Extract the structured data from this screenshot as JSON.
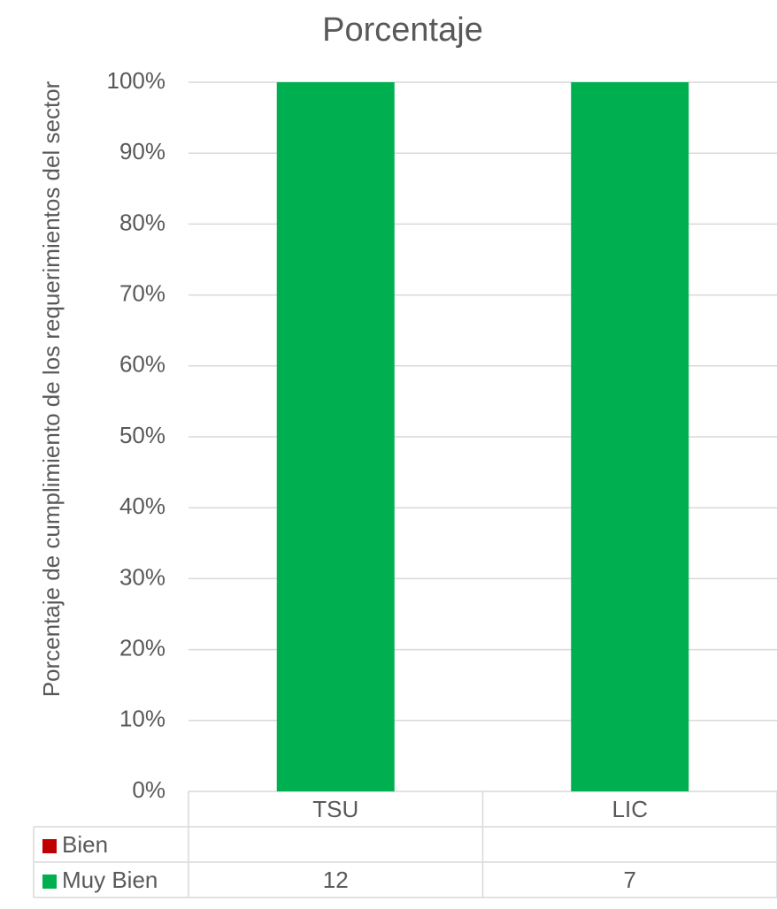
{
  "chart_data": {
    "type": "bar",
    "stacking": "percent",
    "data_table": true,
    "grid": true,
    "title": "Porcentaje",
    "y_label": "Porcentaje de cumplimiento de los requerimientos del sector",
    "categories": [
      "TSU",
      "LIC"
    ],
    "series": [
      {
        "name": "Bien",
        "color": "#c00000",
        "values": [
          null,
          null
        ]
      },
      {
        "name": "Muy Bien",
        "color": "#00b050",
        "values": [
          12,
          7
        ]
      }
    ],
    "ylim": [
      0,
      100
    ],
    "yticks": [
      {
        "value": 0,
        "label": "0%"
      },
      {
        "value": 10,
        "label": "10%"
      },
      {
        "value": 20,
        "label": "20%"
      },
      {
        "value": 30,
        "label": "30%"
      },
      {
        "value": 40,
        "label": "40%"
      },
      {
        "value": 50,
        "label": "50%"
      },
      {
        "value": 60,
        "label": "60%"
      },
      {
        "value": 70,
        "label": "70%"
      },
      {
        "value": 80,
        "label": "80%"
      },
      {
        "value": 90,
        "label": "90%"
      },
      {
        "value": 100,
        "label": "100%"
      }
    ]
  }
}
